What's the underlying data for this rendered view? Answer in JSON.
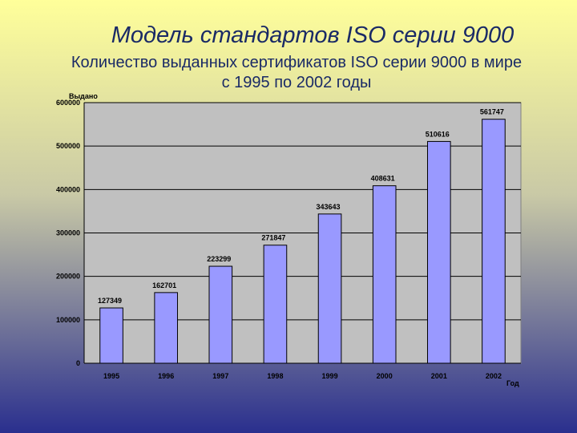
{
  "slide": {
    "title": "Модель стандартов ISO серии 9000",
    "subtitle_line1": "Количество выданных сертификатов ISO серии 9000 в мире",
    "subtitle_line2": "с 1995 по 2002 годы",
    "colors": {
      "bg_top": "#ffff9a",
      "bg_bottom": "#2a2f8e",
      "title": "#1a2a66"
    }
  },
  "chart_data": {
    "type": "bar",
    "categories": [
      "1995",
      "1996",
      "1997",
      "1998",
      "1999",
      "2000",
      "2001",
      "2002"
    ],
    "values": [
      127349,
      162701,
      223299,
      271847,
      343643,
      408631,
      510616,
      561747
    ],
    "data_labels": [
      "127349",
      "162701",
      "223299",
      "271847",
      "343643",
      "408631",
      "510616",
      "561747"
    ],
    "yticks": [
      "0",
      "100000",
      "200000",
      "300000",
      "400000",
      "500000",
      "600000"
    ],
    "ylim": [
      0,
      600000
    ],
    "ylabel": "Выдано",
    "xlabel": "Год",
    "grid": true,
    "colors": {
      "plot_bg": "#c0c0c0",
      "bar_fill": "#9999ff",
      "bar_stroke": "#000000",
      "grid": "#000000"
    }
  }
}
